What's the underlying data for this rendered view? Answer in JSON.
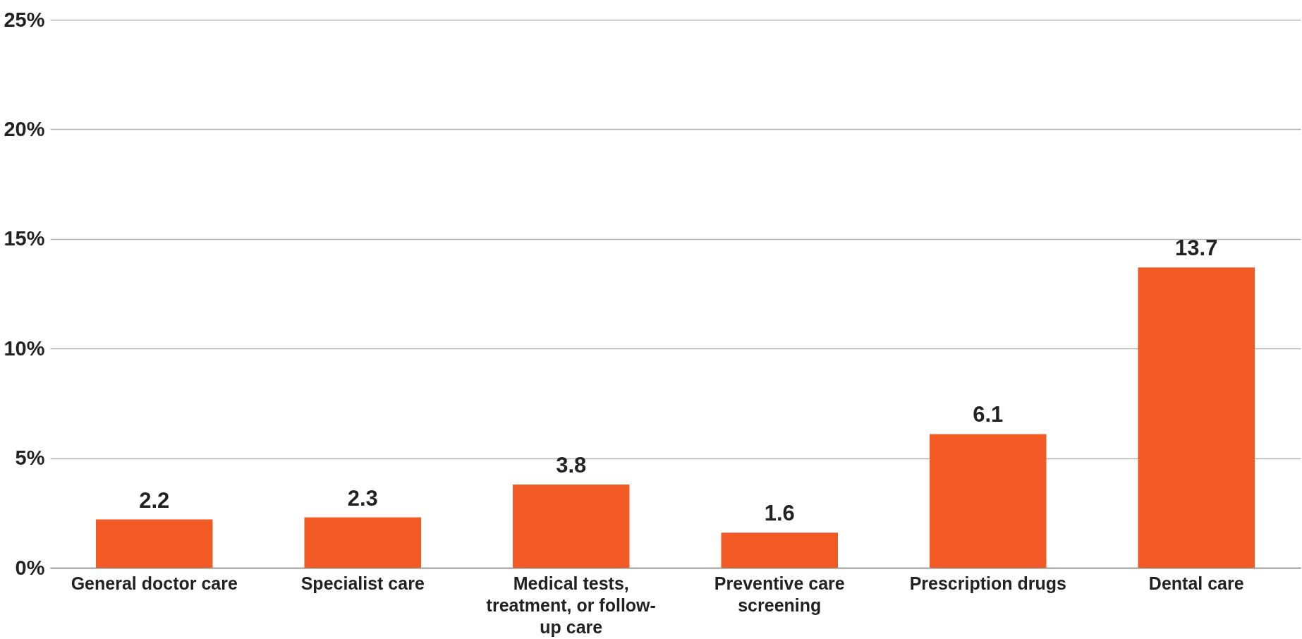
{
  "chart_data": {
    "type": "bar",
    "categories": [
      "General doctor care",
      "Specialist care",
      "Medical tests, treatment, or follow-up care",
      "Preventive care screening",
      "Prescription drugs",
      "Dental care"
    ],
    "values": [
      2.2,
      2.3,
      3.8,
      1.6,
      6.1,
      13.7
    ],
    "color": "#f15a24",
    "ylim": [
      0,
      25
    ],
    "yticks": [
      {
        "value": 0,
        "label": "0%"
      },
      {
        "value": 5,
        "label": "5%"
      },
      {
        "value": 10,
        "label": "10%"
      },
      {
        "value": 15,
        "label": "15%"
      },
      {
        "value": 20,
        "label": "20%"
      },
      {
        "value": 25,
        "label": "25%"
      }
    ],
    "grid": "y",
    "data_labels": true
  }
}
